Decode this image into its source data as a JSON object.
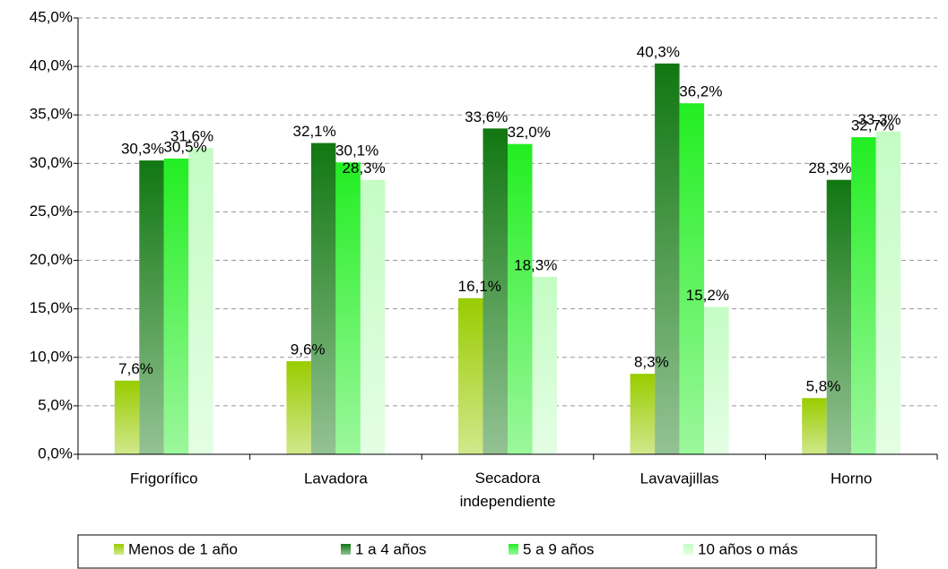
{
  "chart_data": {
    "type": "bar",
    "categories": [
      "Frigorífico",
      "Lavadora",
      "Secadora independiente",
      "Lavavajillas",
      "Horno"
    ],
    "series": [
      {
        "name": "Menos de 1 año",
        "color": "#99cc00",
        "values": [
          7.6,
          9.6,
          16.1,
          8.3,
          5.8
        ],
        "value_labels": [
          "7,6%",
          "9,6%",
          "16,1%",
          "8,3%",
          "5,8%"
        ]
      },
      {
        "name": "1 a 4 años",
        "color": "#117711",
        "values": [
          30.3,
          32.1,
          33.6,
          40.3,
          28.3
        ],
        "value_labels": [
          "30,3%",
          "32,1%",
          "33,6%",
          "40,3%",
          "28,3%"
        ]
      },
      {
        "name": "5 a 9 años",
        "color": "#22ee22",
        "values": [
          30.5,
          30.1,
          32.0,
          36.2,
          32.7
        ],
        "value_labels": [
          "30,5%",
          "30,1%",
          "32,0%",
          "36,2%",
          "32,7%"
        ]
      },
      {
        "name": "10 años o más",
        "color": "#c4fcc4",
        "values": [
          31.6,
          28.3,
          18.3,
          15.2,
          33.3
        ],
        "value_labels": [
          "31,6%",
          "28,3%",
          "18,3%",
          "15,2%",
          "33,3%"
        ]
      }
    ],
    "ylim": [
      0,
      45
    ],
    "yticks": [
      {
        "value": 0,
        "label": "0,0%"
      },
      {
        "value": 5,
        "label": "5,0%"
      },
      {
        "value": 10,
        "label": "10,0%"
      },
      {
        "value": 15,
        "label": "15,0%"
      },
      {
        "value": 20,
        "label": "20,0%"
      },
      {
        "value": 25,
        "label": "25,0%"
      },
      {
        "value": 30,
        "label": "30,0%"
      },
      {
        "value": 35,
        "label": "35,0%"
      },
      {
        "value": 40,
        "label": "40,0%"
      },
      {
        "value": 45,
        "label": "45,0%"
      }
    ],
    "grid": true,
    "legend": "bottom"
  }
}
